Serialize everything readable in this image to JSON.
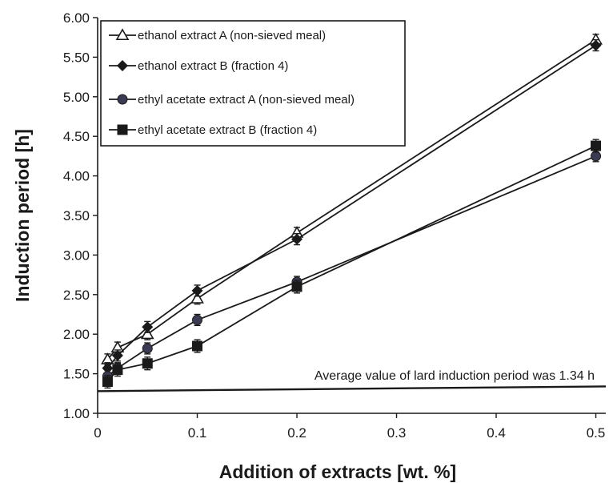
{
  "chart_data": {
    "type": "line",
    "title": "",
    "xlabel": "Addition of extracts [wt. %]",
    "ylabel": "Induction period [h]",
    "xlim": [
      0,
      0.5
    ],
    "ylim": [
      1.0,
      6.0
    ],
    "xticks": [
      "0",
      "0.1",
      "0.2",
      "0.3",
      "0.4",
      "0.5"
    ],
    "yticks": [
      "1.00",
      "1.50",
      "2.00",
      "2.50",
      "3.00",
      "3.50",
      "4.00",
      "4.50",
      "5.00",
      "5.50",
      "6.00"
    ],
    "grid": false,
    "legend_position": "top-left",
    "series": [
      {
        "name": "ethanol extract A (non-sieved meal)",
        "marker": "open-triangle",
        "x": [
          0.01,
          0.02,
          0.05,
          0.1,
          0.2,
          0.5
        ],
        "y": [
          1.68,
          1.83,
          2.0,
          2.45,
          3.28,
          5.72
        ],
        "err": [
          0.07,
          0.07,
          0.07,
          0.07,
          0.07,
          0.07
        ]
      },
      {
        "name": "ethanol extract B (fraction 4)",
        "marker": "filled-diamond",
        "x": [
          0.01,
          0.02,
          0.05,
          0.1,
          0.2,
          0.5
        ],
        "y": [
          1.57,
          1.73,
          2.09,
          2.55,
          3.2,
          5.65
        ],
        "err": [
          0.07,
          0.07,
          0.07,
          0.07,
          0.07,
          0.07
        ]
      },
      {
        "name": "ethyl acetate extract A (non-sieved meal)",
        "marker": "filled-circle",
        "x": [
          0.01,
          0.02,
          0.05,
          0.1,
          0.2,
          0.5
        ],
        "y": [
          1.47,
          1.57,
          1.82,
          2.18,
          2.66,
          4.25
        ],
        "err": [
          0.07,
          0.07,
          0.07,
          0.07,
          0.07,
          0.07
        ]
      },
      {
        "name": "ethyl acetate extract B (fraction 4)",
        "marker": "filled-square",
        "x": [
          0.01,
          0.02,
          0.05,
          0.1,
          0.2,
          0.5
        ],
        "y": [
          1.4,
          1.55,
          1.63,
          1.85,
          2.6,
          4.38
        ],
        "err": [
          0.08,
          0.08,
          0.08,
          0.08,
          0.08,
          0.08
        ]
      }
    ],
    "reference_line": {
      "x": [
        0,
        0.51
      ],
      "y": [
        1.28,
        1.34
      ],
      "label": "Average value of lard induction period was 1.34 h"
    },
    "colors": {
      "line": "#1a1a1a",
      "circle_fill": "#3a3a52"
    }
  }
}
